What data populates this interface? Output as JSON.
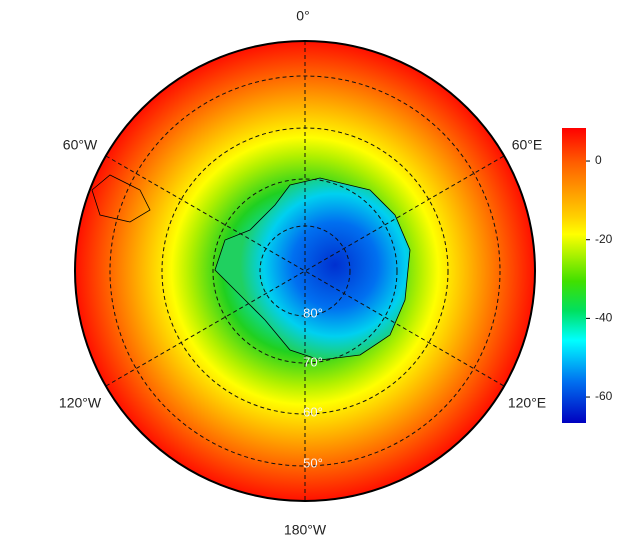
{
  "map": {
    "longitude_labels": [
      "0°",
      "60°E",
      "120°E",
      "180°W",
      "120°W",
      "60°W"
    ],
    "latitude_labels": [
      "80°",
      "70°",
      "60°",
      "50°"
    ],
    "colorbar": {
      "lim": [
        -66.6,
        8.4
      ],
      "ticks": [
        0,
        -20,
        -40,
        -60
      ]
    }
  }
}
